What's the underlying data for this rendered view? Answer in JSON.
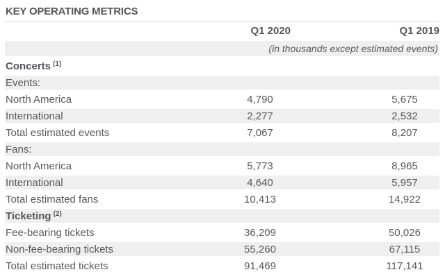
{
  "page": {
    "title": "KEY OPERATING METRICS"
  },
  "table": {
    "columns": [
      "Q1 2020",
      "Q1 2019"
    ],
    "units_note": "(in thousands except estimated events)",
    "rows": [
      {
        "kind": "section",
        "label": "Concerts",
        "sup": "(1)"
      },
      {
        "kind": "subheader",
        "label": "Events:"
      },
      {
        "kind": "data",
        "label": "North America",
        "v2020": "4,790",
        "v2019": "5,675"
      },
      {
        "kind": "data",
        "label": "International",
        "v2020": "2,277",
        "v2019": "2,532"
      },
      {
        "kind": "data",
        "label": "Total estimated events",
        "v2020": "7,067",
        "v2019": "8,207"
      },
      {
        "kind": "subheader",
        "label": "Fans:"
      },
      {
        "kind": "data",
        "label": "North America",
        "v2020": "5,773",
        "v2019": "8,965"
      },
      {
        "kind": "data",
        "label": "International",
        "v2020": "4,640",
        "v2019": "5,957"
      },
      {
        "kind": "data",
        "label": "Total estimated fans",
        "v2020": "10,413",
        "v2019": "14,922"
      },
      {
        "kind": "section",
        "label": "Ticketing",
        "sup": "(2)"
      },
      {
        "kind": "data",
        "label": "Fee-bearing tickets",
        "v2020": "36,209",
        "v2019": "50,026"
      },
      {
        "kind": "data",
        "label": "Non-fee-bearing tickets",
        "v2020": "55,260",
        "v2019": "67,115"
      },
      {
        "kind": "data",
        "label": "Total estimated tickets",
        "v2020": "91,469",
        "v2019": "117,141"
      }
    ]
  },
  "colors": {
    "text": "#58595B",
    "bold_text": "#55565A",
    "stripe_background": "#EFEFEF",
    "rule": "#D9D9D9"
  }
}
